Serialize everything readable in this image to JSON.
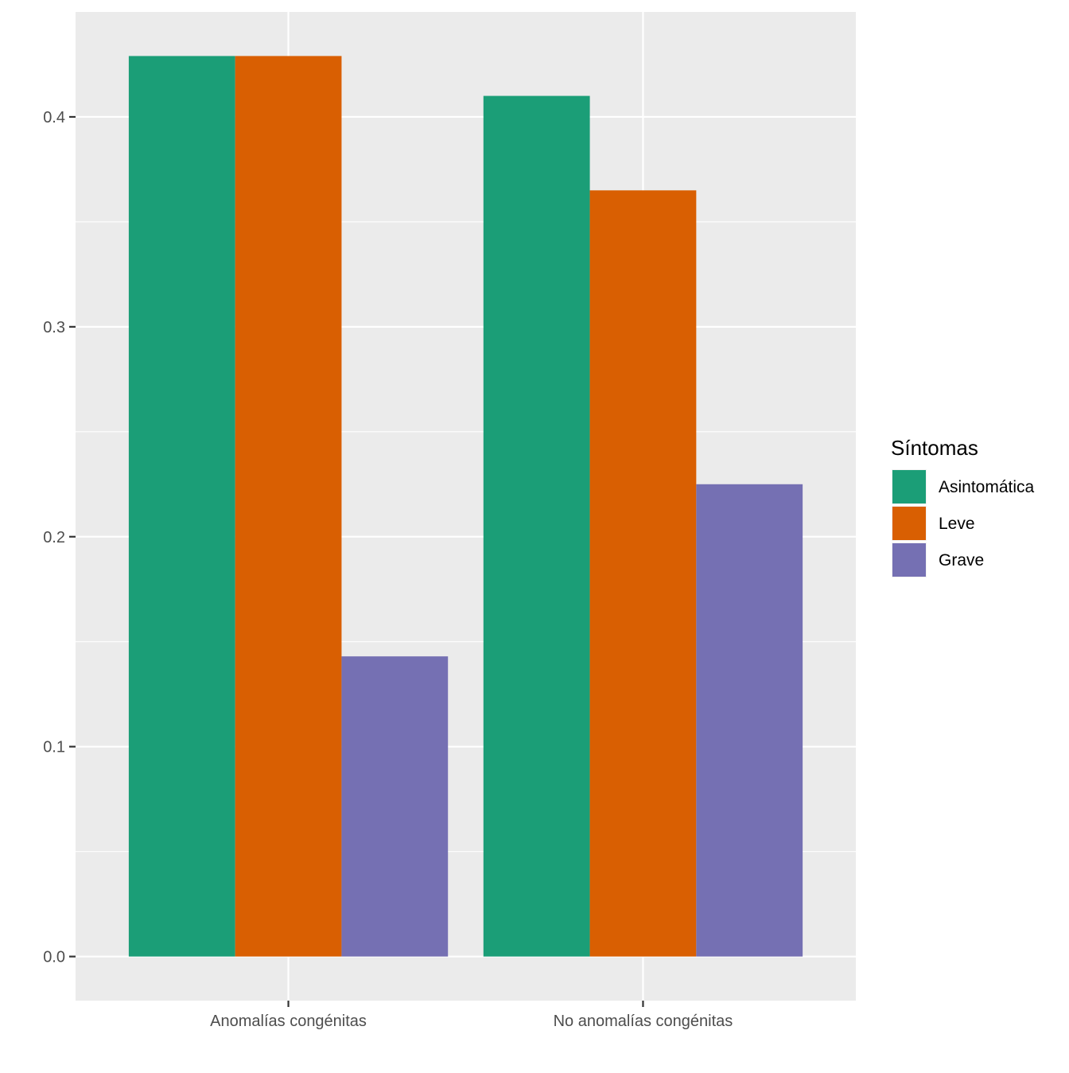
{
  "chart_data": {
    "type": "bar",
    "categories": [
      "Anomalías congénitas",
      "No anomalías congénitas"
    ],
    "series": [
      {
        "name": "Asintomática",
        "color": "#1b9e77",
        "values": [
          0.429,
          0.41
        ]
      },
      {
        "name": "Leve",
        "color": "#d95f02",
        "values": [
          0.429,
          0.365
        ]
      },
      {
        "name": "Grave",
        "color": "#7570b3",
        "values": [
          0.143,
          0.225
        ]
      }
    ],
    "yticks": [
      0.0,
      0.1,
      0.2,
      0.3,
      0.4
    ],
    "ytick_labels": [
      "0.0",
      "0.1",
      "0.2",
      "0.3",
      "0.4"
    ],
    "ylim": [
      -0.021,
      0.45
    ],
    "title": "",
    "xlabel": "",
    "ylabel": "",
    "grid": true,
    "legend": {
      "title": "Síntomas",
      "position": "right"
    },
    "panel_background": "#ebebeb",
    "grid_color": "#ffffff"
  }
}
